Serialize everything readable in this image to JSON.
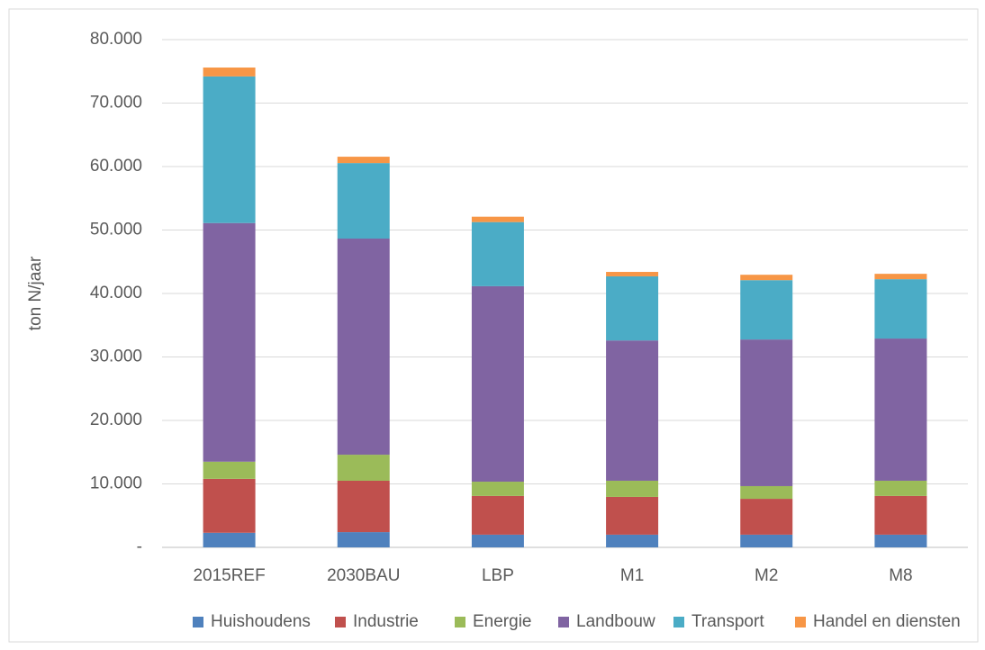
{
  "chart_data": {
    "type": "stacked_bar",
    "y_label": "ton N/jaar",
    "categories": [
      "2015REF",
      "2030BAU",
      "LBP",
      "M1",
      "M2",
      "M8"
    ],
    "series": [
      {
        "name": "Huishoudens",
        "color": "#4F81BD",
        "values": [
          2300,
          2400,
          2000,
          2000,
          2000,
          2000
        ]
      },
      {
        "name": "Industrie",
        "color": "#C0504D",
        "values": [
          8500,
          8100,
          6100,
          5950,
          5650,
          6100
        ]
      },
      {
        "name": "Energie",
        "color": "#9BBB59",
        "values": [
          2700,
          4100,
          2250,
          2550,
          2000,
          2400
        ]
      },
      {
        "name": "Landbouw",
        "color": "#8064A2",
        "values": [
          37600,
          34050,
          30800,
          22100,
          23100,
          22400
        ]
      },
      {
        "name": "Transport",
        "color": "#4BACC6",
        "values": [
          23100,
          11900,
          10100,
          10100,
          9350,
          9350
        ]
      },
      {
        "name": "Handel en diensten",
        "color": "#F79646",
        "values": [
          1400,
          1000,
          850,
          700,
          850,
          850
        ]
      }
    ],
    "ylim": [
      0,
      80000
    ],
    "yticks": [
      {
        "value": 0,
        "label": "-"
      },
      {
        "value": 10000,
        "label": "10.000"
      },
      {
        "value": 20000,
        "label": "20.000"
      },
      {
        "value": 30000,
        "label": "30.000"
      },
      {
        "value": 40000,
        "label": "40.000"
      },
      {
        "value": 50000,
        "label": "50.000"
      },
      {
        "value": 60000,
        "label": "60.000"
      },
      {
        "value": 70000,
        "label": "70.000"
      },
      {
        "value": 80000,
        "label": "80.000"
      }
    ],
    "grid": true,
    "legend": "bottom"
  }
}
